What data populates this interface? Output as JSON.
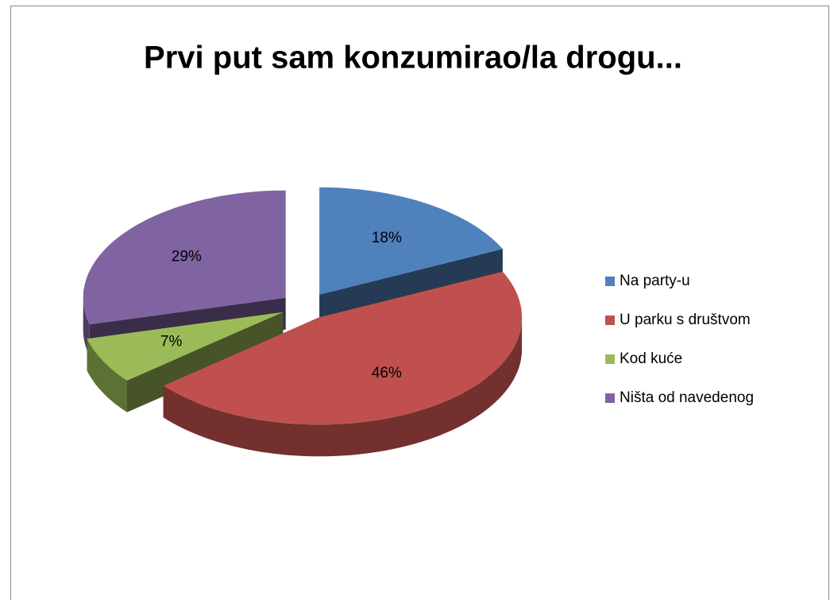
{
  "chart_data": {
    "type": "pie",
    "title": "Prvi put sam konzumirao/la drogu...",
    "categories": [
      "Na party-u",
      "U parku s društvom",
      "Kod kuće",
      "Ništa od navedenog"
    ],
    "values": [
      18,
      46,
      7,
      29
    ],
    "value_labels": [
      "18%",
      "46%",
      "7%",
      "29%"
    ],
    "colors": [
      "#4f81bd",
      "#c0504d",
      "#9bbb59",
      "#8064a2"
    ],
    "legend": "right"
  }
}
